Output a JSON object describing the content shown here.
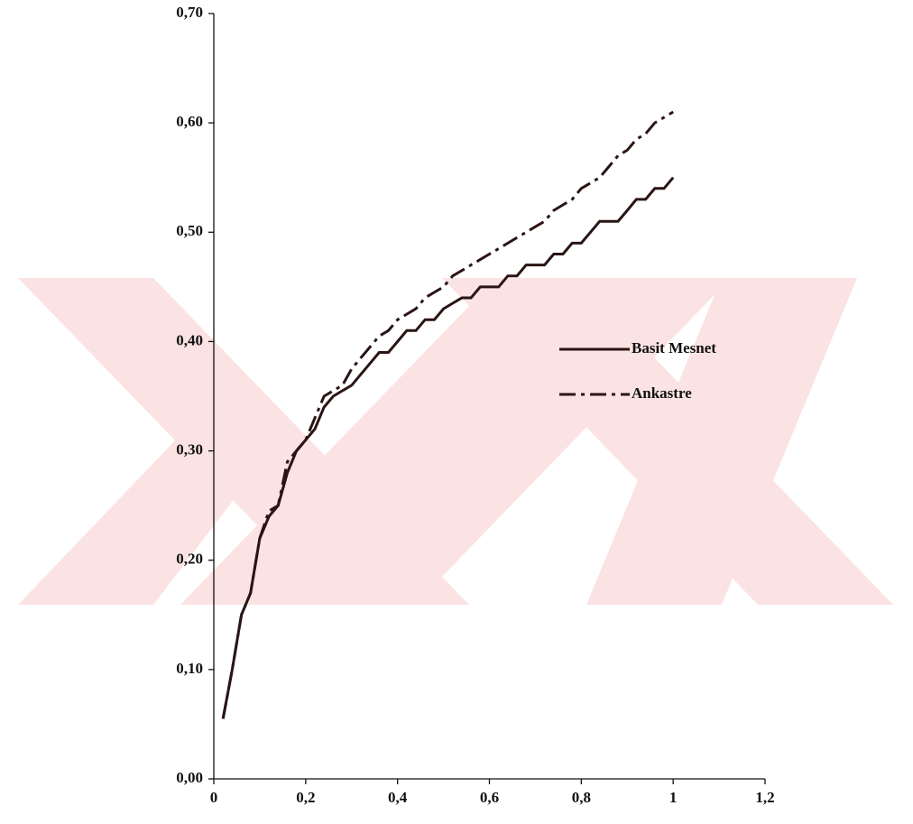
{
  "chart_data": {
    "type": "line",
    "x": [
      0.02,
      0.04,
      0.06,
      0.08,
      0.1,
      0.12,
      0.14,
      0.16,
      0.18,
      0.2,
      0.22,
      0.24,
      0.26,
      0.28,
      0.3,
      0.32,
      0.34,
      0.36,
      0.38,
      0.4,
      0.42,
      0.44,
      0.46,
      0.48,
      0.5,
      0.52,
      0.54,
      0.56,
      0.58,
      0.6,
      0.62,
      0.64,
      0.66,
      0.68,
      0.7,
      0.72,
      0.74,
      0.76,
      0.78,
      0.8,
      0.82,
      0.84,
      0.86,
      0.88,
      0.9,
      0.92,
      0.94,
      0.96,
      0.98,
      1.0
    ],
    "series": [
      {
        "name": "Basit Mesnet",
        "color": "#2a1414",
        "dash": "solid",
        "values": [
          0.055,
          0.1,
          0.15,
          0.17,
          0.22,
          0.24,
          0.25,
          0.28,
          0.3,
          0.31,
          0.32,
          0.34,
          0.35,
          0.355,
          0.36,
          0.37,
          0.38,
          0.39,
          0.39,
          0.4,
          0.41,
          0.41,
          0.42,
          0.42,
          0.43,
          0.435,
          0.44,
          0.44,
          0.45,
          0.45,
          0.45,
          0.46,
          0.46,
          0.47,
          0.47,
          0.47,
          0.48,
          0.48,
          0.49,
          0.49,
          0.5,
          0.51,
          0.51,
          0.51,
          0.52,
          0.53,
          0.53,
          0.54,
          0.54,
          0.55
        ]
      },
      {
        "name": "Ankastre",
        "color": "#2a1414",
        "dash": "dashdot",
        "values": [
          0.055,
          0.1,
          0.15,
          0.17,
          0.22,
          0.245,
          0.25,
          0.29,
          0.3,
          0.31,
          0.33,
          0.35,
          0.355,
          0.36,
          0.375,
          0.385,
          0.395,
          0.405,
          0.41,
          0.42,
          0.425,
          0.43,
          0.44,
          0.445,
          0.45,
          0.46,
          0.465,
          0.47,
          0.475,
          0.48,
          0.485,
          0.49,
          0.495,
          0.5,
          0.505,
          0.51,
          0.52,
          0.525,
          0.53,
          0.54,
          0.545,
          0.55,
          0.56,
          0.57,
          0.575,
          0.585,
          0.59,
          0.6,
          0.605,
          0.61
        ]
      }
    ],
    "xlim": [
      0,
      1.2
    ],
    "xticks": [
      0,
      {
        "value": 0.2,
        "label": "0,2"
      },
      {
        "value": 0.4,
        "label": "0,4"
      },
      {
        "value": 0.6,
        "label": "0,6"
      },
      {
        "value": 0.8,
        "label": "0,8"
      },
      {
        "value": 1,
        "label": "1"
      },
      {
        "value": 1.2,
        "label": "1,2"
      }
    ],
    "ylim": [
      0,
      0.7
    ],
    "yticks": [
      {
        "value": 0,
        "label": "0,00"
      },
      {
        "value": 0.1,
        "label": "0,10"
      },
      {
        "value": 0.2,
        "label": "0,20"
      },
      {
        "value": 0.3,
        "label": "0,30"
      },
      {
        "value": 0.4,
        "label": "0,40"
      },
      {
        "value": 0.5,
        "label": "0,50"
      },
      {
        "value": 0.6,
        "label": "0,60"
      },
      {
        "value": 0.7,
        "label": "0,70"
      }
    ],
    "grid": false
  }
}
